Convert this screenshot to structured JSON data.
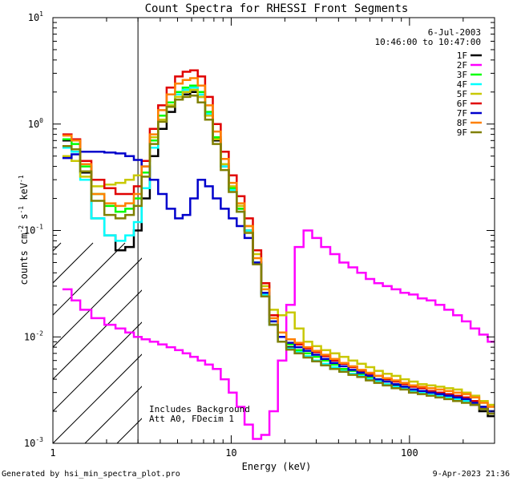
{
  "chart_data": {
    "type": "line",
    "title": "Count Spectra for RHESSI Front Segments",
    "xlabel": "Energy (keV)",
    "ylabel": "counts cm",
    "ylabel_sup1": "-2",
    "ylabel_mid": " s",
    "ylabel_sup2": "-1",
    "ylabel_tail": " keV",
    "ylabel_sup3": "-1",
    "xscale": "log",
    "yscale": "log",
    "xlim": [
      1,
      300
    ],
    "ylim": [
      0.001,
      10
    ],
    "x_ticks": [
      {
        "value": 1,
        "label": "1"
      },
      {
        "value": 10,
        "label": "10"
      },
      {
        "value": 100,
        "label": "100"
      }
    ],
    "y_ticks": [
      {
        "value": 0.001,
        "base": "10",
        "exp": "-3"
      },
      {
        "value": 0.01,
        "base": "10",
        "exp": "-2"
      },
      {
        "value": 0.1,
        "base": "10",
        "exp": "-1"
      },
      {
        "value": 1,
        "base": "10",
        "exp": "0"
      },
      {
        "value": 10,
        "base": "10",
        "exp": "1"
      }
    ],
    "hatched_below_keV": 3,
    "date": "6-Jul-2003",
    "time_range": "10:46:00 to 10:47:00",
    "annotations": [
      "Includes Background",
      "Att A0, FDecim 1"
    ],
    "series": [
      {
        "name": "1F",
        "color": "#000000",
        "x": [
          1.2,
          1.35,
          1.5,
          1.8,
          2.1,
          2.4,
          2.7,
          3.0,
          3.3,
          3.7,
          4.1,
          4.6,
          5.1,
          5.6,
          6.2,
          6.8,
          7.5,
          8.3,
          9.2,
          10.2,
          11.3,
          12.5,
          14,
          15.5,
          17.3,
          19.3,
          21.5,
          24,
          27,
          30,
          34,
          38,
          43,
          48,
          54,
          60,
          67,
          75,
          84,
          94,
          105,
          118,
          132,
          148,
          166,
          186,
          208,
          233,
          260,
          290
        ],
        "y": [
          0.7,
          0.7,
          0.35,
          0.13,
          0.09,
          0.065,
          0.07,
          0.1,
          0.2,
          0.5,
          0.9,
          1.3,
          1.7,
          1.9,
          2.0,
          1.8,
          1.2,
          0.7,
          0.4,
          0.25,
          0.16,
          0.1,
          0.05,
          0.025,
          0.013,
          0.009,
          0.008,
          0.007,
          0.0065,
          0.006,
          0.0055,
          0.005,
          0.0048,
          0.0045,
          0.0043,
          0.004,
          0.0038,
          0.0036,
          0.0035,
          0.0033,
          0.0032,
          0.003,
          0.0029,
          0.0028,
          0.0027,
          0.0026,
          0.0025,
          0.0023,
          0.002,
          0.0018
        ]
      },
      {
        "name": "2F",
        "color": "#ff00ff",
        "x": [
          1.2,
          1.35,
          1.5,
          1.8,
          2.1,
          2.4,
          2.7,
          3.0,
          3.3,
          3.7,
          4.1,
          4.6,
          5.1,
          5.6,
          6.2,
          6.8,
          7.5,
          8.3,
          9.2,
          10.2,
          11.3,
          12.5,
          14,
          15.5,
          17.3,
          19.3,
          21.5,
          24,
          27,
          30,
          34,
          38,
          43,
          48,
          54,
          60,
          67,
          75,
          84,
          94,
          105,
          118,
          132,
          148,
          166,
          186,
          208,
          233,
          260,
          290
        ],
        "y": [
          0.028,
          0.022,
          0.018,
          0.015,
          0.013,
          0.012,
          0.011,
          0.01,
          0.0095,
          0.009,
          0.0085,
          0.008,
          0.0075,
          0.007,
          0.0065,
          0.006,
          0.0055,
          0.005,
          0.004,
          0.003,
          0.0022,
          0.0015,
          0.0011,
          0.0012,
          0.002,
          0.006,
          0.02,
          0.07,
          0.1,
          0.085,
          0.07,
          0.06,
          0.05,
          0.045,
          0.04,
          0.035,
          0.032,
          0.03,
          0.028,
          0.026,
          0.025,
          0.023,
          0.022,
          0.02,
          0.018,
          0.016,
          0.014,
          0.012,
          0.0105,
          0.009
        ]
      },
      {
        "name": "3F",
        "color": "#00ff00",
        "x": [
          1.2,
          1.35,
          1.5,
          1.8,
          2.1,
          2.4,
          2.7,
          3.0,
          3.3,
          3.7,
          4.1,
          4.6,
          5.1,
          5.6,
          6.2,
          6.8,
          7.5,
          8.3,
          9.2,
          10.2,
          11.3,
          12.5,
          14,
          15.5,
          17.3,
          19.3,
          21.5,
          24,
          27,
          30,
          34,
          38,
          43,
          48,
          54,
          60,
          67,
          75,
          84,
          94,
          105,
          118,
          132,
          148,
          166,
          186,
          208,
          233,
          260,
          290
        ],
        "y": [
          0.72,
          0.65,
          0.4,
          0.22,
          0.17,
          0.15,
          0.16,
          0.2,
          0.35,
          0.7,
          1.2,
          1.6,
          2.0,
          2.2,
          2.3,
          2.0,
          1.3,
          0.75,
          0.42,
          0.25,
          0.16,
          0.1,
          0.05,
          0.026,
          0.014,
          0.01,
          0.0085,
          0.0075,
          0.007,
          0.0065,
          0.006,
          0.0055,
          0.005,
          0.0048,
          0.0045,
          0.0042,
          0.004,
          0.0038,
          0.0036,
          0.0034,
          0.0032,
          0.003,
          0.0029,
          0.0028,
          0.0027,
          0.0026,
          0.0025,
          0.0024,
          0.0022,
          0.002
        ]
      },
      {
        "name": "4F",
        "color": "#00ffff",
        "x": [
          1.2,
          1.35,
          1.5,
          1.8,
          2.1,
          2.4,
          2.7,
          3.0,
          3.3,
          3.7,
          4.1,
          4.6,
          5.1,
          5.6,
          6.2,
          6.8,
          7.5,
          8.3,
          9.2,
          10.2,
          11.3,
          12.5,
          14,
          15.5,
          17.3,
          19.3,
          21.5,
          24,
          27,
          30,
          34,
          38,
          43,
          48,
          54,
          60,
          67,
          75,
          84,
          94,
          105,
          118,
          132,
          148,
          166,
          186,
          208,
          233,
          260,
          290
        ],
        "y": [
          0.6,
          0.55,
          0.3,
          0.13,
          0.09,
          0.08,
          0.09,
          0.12,
          0.25,
          0.6,
          1.1,
          1.5,
          1.9,
          2.1,
          2.2,
          1.9,
          1.25,
          0.72,
          0.4,
          0.24,
          0.15,
          0.1,
          0.05,
          0.025,
          0.013,
          0.009,
          0.0078,
          0.0072,
          0.0066,
          0.006,
          0.0056,
          0.0052,
          0.0048,
          0.0045,
          0.0043,
          0.004,
          0.0038,
          0.0036,
          0.0034,
          0.0033,
          0.0031,
          0.003,
          0.0029,
          0.0028,
          0.0027,
          0.0026,
          0.0025,
          0.0024,
          0.0022,
          0.002
        ]
      },
      {
        "name": "5F",
        "color": "#c8c800",
        "x": [
          1.2,
          1.35,
          1.5,
          1.8,
          2.1,
          2.4,
          2.7,
          3.0,
          3.3,
          3.7,
          4.1,
          4.6,
          5.1,
          5.6,
          6.2,
          6.8,
          7.5,
          8.3,
          9.2,
          10.2,
          11.3,
          12.5,
          14,
          15.5,
          17.3,
          19.3,
          21.5,
          24,
          27,
          30,
          34,
          38,
          43,
          48,
          54,
          60,
          67,
          75,
          84,
          94,
          105,
          118,
          132,
          148,
          166,
          186,
          208,
          233,
          260,
          290
        ],
        "y": [
          0.5,
          0.45,
          0.32,
          0.26,
          0.27,
          0.28,
          0.3,
          0.33,
          0.45,
          0.75,
          1.1,
          1.5,
          1.8,
          2.0,
          2.1,
          1.8,
          1.2,
          0.72,
          0.42,
          0.26,
          0.17,
          0.11,
          0.06,
          0.03,
          0.018,
          0.016,
          0.017,
          0.012,
          0.009,
          0.0082,
          0.0075,
          0.007,
          0.0065,
          0.006,
          0.0056,
          0.0052,
          0.0048,
          0.0045,
          0.0043,
          0.004,
          0.0038,
          0.0036,
          0.0035,
          0.0034,
          0.0033,
          0.0032,
          0.003,
          0.0028,
          0.0025,
          0.0023
        ]
      },
      {
        "name": "6F",
        "color": "#e00000",
        "x": [
          1.2,
          1.35,
          1.5,
          1.8,
          2.1,
          2.4,
          2.7,
          3.0,
          3.3,
          3.7,
          4.1,
          4.6,
          5.1,
          5.6,
          6.2,
          6.8,
          7.5,
          8.3,
          9.2,
          10.2,
          11.3,
          12.5,
          14,
          15.5,
          17.3,
          19.3,
          21.5,
          24,
          27,
          30,
          34,
          38,
          43,
          48,
          54,
          60,
          67,
          75,
          84,
          94,
          105,
          118,
          132,
          148,
          166,
          186,
          208,
          233,
          260,
          290
        ],
        "y": [
          0.8,
          0.72,
          0.45,
          0.3,
          0.25,
          0.22,
          0.22,
          0.26,
          0.45,
          0.9,
          1.5,
          2.2,
          2.8,
          3.1,
          3.2,
          2.8,
          1.8,
          1.0,
          0.55,
          0.33,
          0.21,
          0.13,
          0.065,
          0.032,
          0.016,
          0.011,
          0.0095,
          0.0085,
          0.0078,
          0.0072,
          0.0066,
          0.006,
          0.0056,
          0.0052,
          0.0048,
          0.0045,
          0.0043,
          0.004,
          0.0038,
          0.0036,
          0.0034,
          0.0033,
          0.0031,
          0.003,
          0.0029,
          0.0028,
          0.0027,
          0.0025,
          0.0022,
          0.002
        ]
      },
      {
        "name": "7F",
        "color": "#0000cc",
        "x": [
          1.2,
          1.35,
          1.5,
          1.8,
          2.1,
          2.4,
          2.7,
          3.0,
          3.3,
          3.7,
          4.1,
          4.6,
          5.1,
          5.6,
          6.2,
          6.8,
          7.5,
          8.3,
          9.2,
          10.2,
          11.3,
          12.5,
          14,
          15.5,
          17.3,
          19.3,
          21.5,
          24,
          27,
          30,
          34,
          38,
          43,
          48,
          54,
          60,
          67,
          75,
          84,
          94,
          105,
          118,
          132,
          148,
          166,
          186,
          208,
          233,
          260,
          290
        ],
        "y": [
          0.48,
          0.52,
          0.55,
          0.55,
          0.54,
          0.53,
          0.5,
          0.46,
          0.4,
          0.3,
          0.22,
          0.16,
          0.13,
          0.14,
          0.2,
          0.3,
          0.26,
          0.2,
          0.16,
          0.13,
          0.11,
          0.085,
          0.05,
          0.026,
          0.014,
          0.01,
          0.0088,
          0.008,
          0.0074,
          0.0068,
          0.0062,
          0.0057,
          0.0053,
          0.0049,
          0.0046,
          0.0043,
          0.004,
          0.0038,
          0.0036,
          0.0034,
          0.0032,
          0.0031,
          0.003,
          0.0029,
          0.0028,
          0.0027,
          0.0026,
          0.0024,
          0.0022,
          0.002
        ]
      },
      {
        "name": "8F",
        "color": "#ff8000",
        "x": [
          1.2,
          1.35,
          1.5,
          1.8,
          2.1,
          2.4,
          2.7,
          3.0,
          3.3,
          3.7,
          4.1,
          4.6,
          5.1,
          5.6,
          6.2,
          6.8,
          7.5,
          8.3,
          9.2,
          10.2,
          11.3,
          12.5,
          14,
          15.5,
          17.3,
          19.3,
          21.5,
          24,
          27,
          30,
          34,
          38,
          43,
          48,
          54,
          60,
          67,
          75,
          84,
          94,
          105,
          118,
          132,
          148,
          166,
          186,
          208,
          233,
          260,
          290
        ],
        "y": [
          0.78,
          0.7,
          0.42,
          0.22,
          0.18,
          0.17,
          0.18,
          0.22,
          0.4,
          0.8,
          1.35,
          1.9,
          2.4,
          2.6,
          2.7,
          2.3,
          1.5,
          0.85,
          0.47,
          0.28,
          0.18,
          0.11,
          0.055,
          0.028,
          0.015,
          0.011,
          0.0095,
          0.0088,
          0.008,
          0.0074,
          0.0068,
          0.0062,
          0.0057,
          0.0053,
          0.0049,
          0.0046,
          0.0043,
          0.0041,
          0.0039,
          0.0037,
          0.0035,
          0.0034,
          0.0033,
          0.0032,
          0.0031,
          0.003,
          0.0029,
          0.0027,
          0.0024,
          0.0022
        ]
      },
      {
        "name": "9F",
        "color": "#808000",
        "x": [
          1.2,
          1.35,
          1.5,
          1.8,
          2.1,
          2.4,
          2.7,
          3.0,
          3.3,
          3.7,
          4.1,
          4.6,
          5.1,
          5.6,
          6.2,
          6.8,
          7.5,
          8.3,
          9.2,
          10.2,
          11.3,
          12.5,
          14,
          15.5,
          17.3,
          19.3,
          21.5,
          24,
          27,
          30,
          34,
          38,
          43,
          48,
          54,
          60,
          67,
          75,
          84,
          94,
          105,
          118,
          132,
          148,
          166,
          186,
          208,
          233,
          260,
          290
        ],
        "y": [
          0.62,
          0.58,
          0.36,
          0.19,
          0.14,
          0.13,
          0.14,
          0.17,
          0.32,
          0.65,
          1.05,
          1.45,
          1.7,
          1.8,
          1.85,
          1.6,
          1.1,
          0.65,
          0.37,
          0.23,
          0.15,
          0.095,
          0.048,
          0.024,
          0.013,
          0.009,
          0.0076,
          0.007,
          0.0064,
          0.0059,
          0.0054,
          0.005,
          0.0047,
          0.0044,
          0.0042,
          0.0039,
          0.0037,
          0.0035,
          0.0033,
          0.0032,
          0.003,
          0.0029,
          0.0028,
          0.0027,
          0.0026,
          0.0025,
          0.0024,
          0.0023,
          0.0021,
          0.0019
        ]
      }
    ]
  },
  "footer": {
    "generated_by": "Generated by hsi_min_spectra_plot.pro",
    "timestamp": "9-Apr-2023 21:36"
  }
}
